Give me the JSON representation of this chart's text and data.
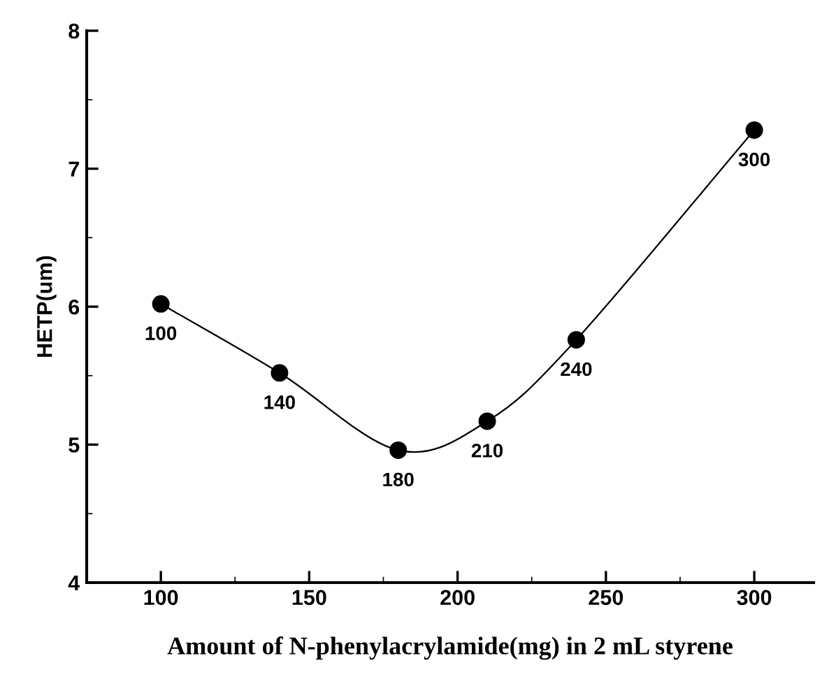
{
  "chart_data": {
    "type": "line",
    "xlabel": "Amount of N-phenylacrylamide(mg) in 2 mL styrene",
    "ylabel": "HETP(um)",
    "x": [
      100,
      140,
      180,
      210,
      240,
      300
    ],
    "series": [
      {
        "color": "#000000",
        "values": [
          6.02,
          5.52,
          4.96,
          5.17,
          5.76,
          7.28
        ]
      }
    ],
    "marker": "circle",
    "line_style": "solid",
    "grid": false,
    "legend": false,
    "xlim": [
      75,
      320
    ],
    "xticks": [
      100,
      150,
      200,
      250,
      300
    ],
    "ylim": [
      4,
      8
    ],
    "yticks": [
      4,
      5,
      6,
      7,
      8
    ],
    "annotations": [
      {
        "text": "100",
        "x": 100,
        "y": 6.02
      },
      {
        "text": "140",
        "x": 140,
        "y": 5.52
      },
      {
        "text": "180",
        "x": 180,
        "y": 4.96
      },
      {
        "text": "210",
        "x": 210,
        "y": 5.17
      },
      {
        "text": "240",
        "x": 240,
        "y": 5.76
      },
      {
        "text": "300",
        "x": 300,
        "y": 7.28
      }
    ]
  }
}
